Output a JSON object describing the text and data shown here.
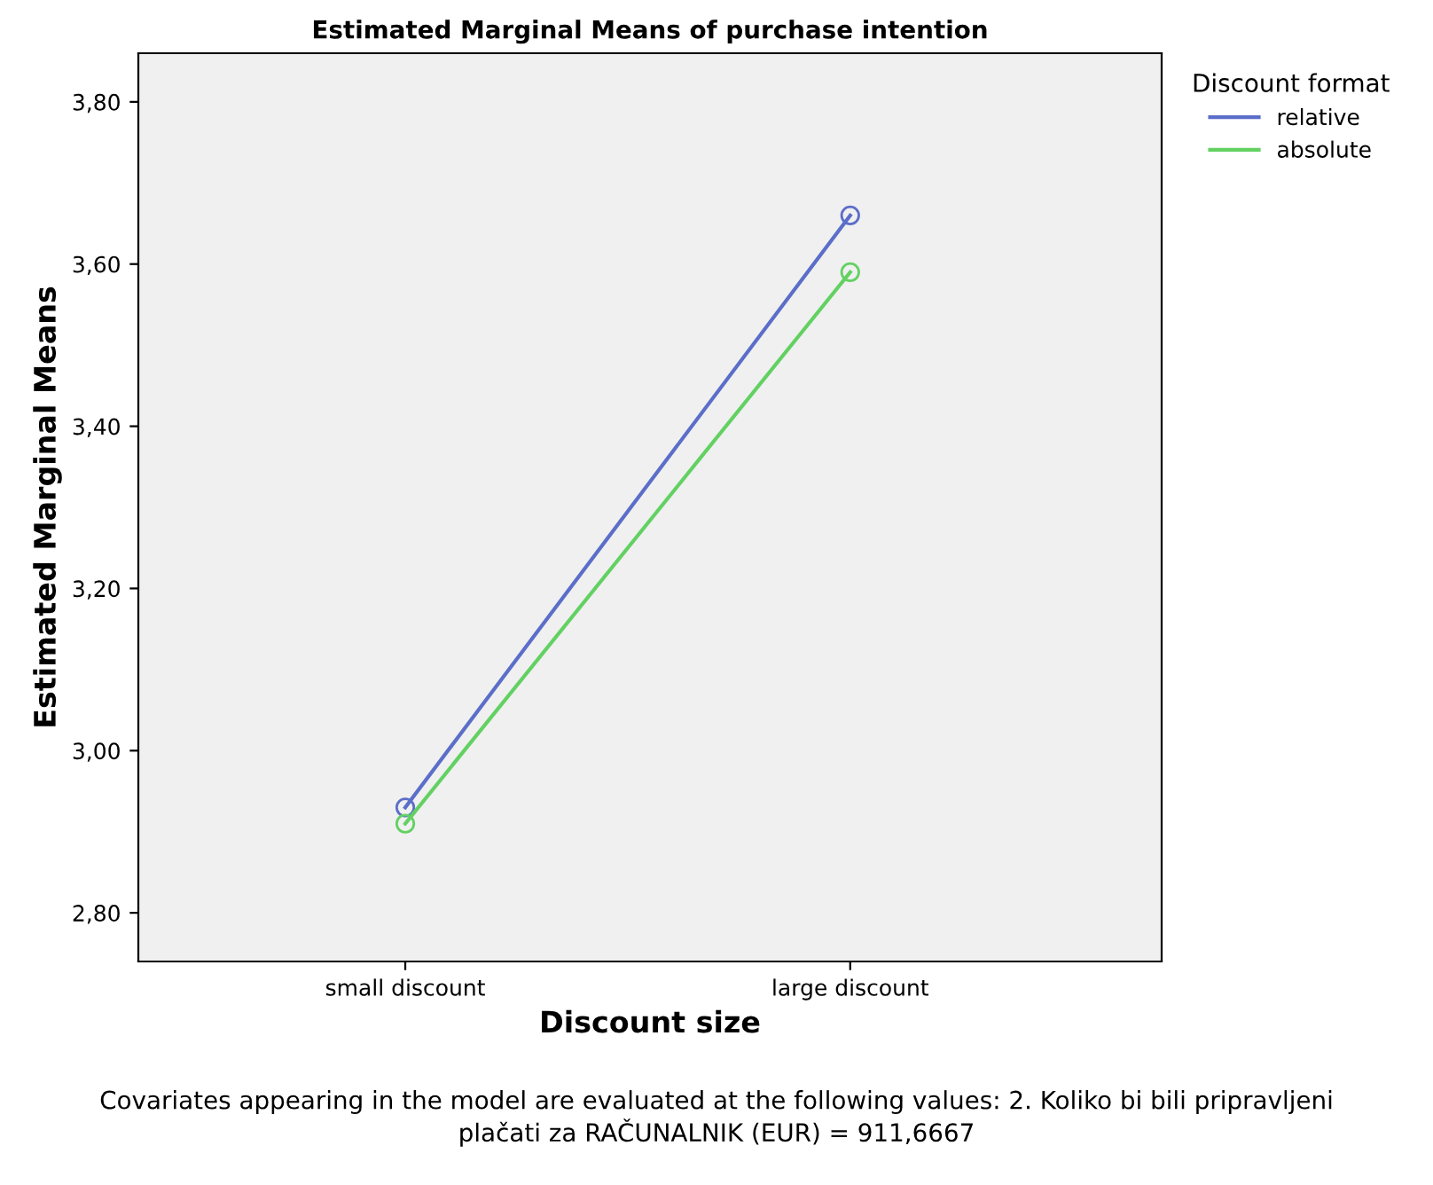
{
  "chart_data": {
    "type": "line",
    "title": "Estimated Marginal Means of purchase intention",
    "xlabel": "Discount size",
    "ylabel": "Estimated Marginal Means",
    "legend_title": "Discount format",
    "categories": [
      "small discount",
      "large discount"
    ],
    "series": [
      {
        "name": "relative",
        "color": "#5b6ec9",
        "values": [
          2.93,
          3.66
        ]
      },
      {
        "name": "absolute",
        "color": "#62d162",
        "values": [
          2.91,
          3.59
        ]
      }
    ],
    "ylim": [
      2.74,
      3.86
    ],
    "yticks": [
      {
        "value": 2.8,
        "label": "2,80"
      },
      {
        "value": 3.0,
        "label": "3,00"
      },
      {
        "value": 3.2,
        "label": "3,20"
      },
      {
        "value": 3.4,
        "label": "3,40"
      },
      {
        "value": 3.6,
        "label": "3,60"
      },
      {
        "value": 3.8,
        "label": "3,80"
      }
    ],
    "marker": "circle",
    "line_style": "solid",
    "grid": false,
    "legend": "top right",
    "annotations": [
      "Covariates appearing in the model are evaluated at the following values: 2. Koliko bi bili pripravljeni\nplačati za RAČUNALNIK (EUR) = 911,6667"
    ]
  }
}
